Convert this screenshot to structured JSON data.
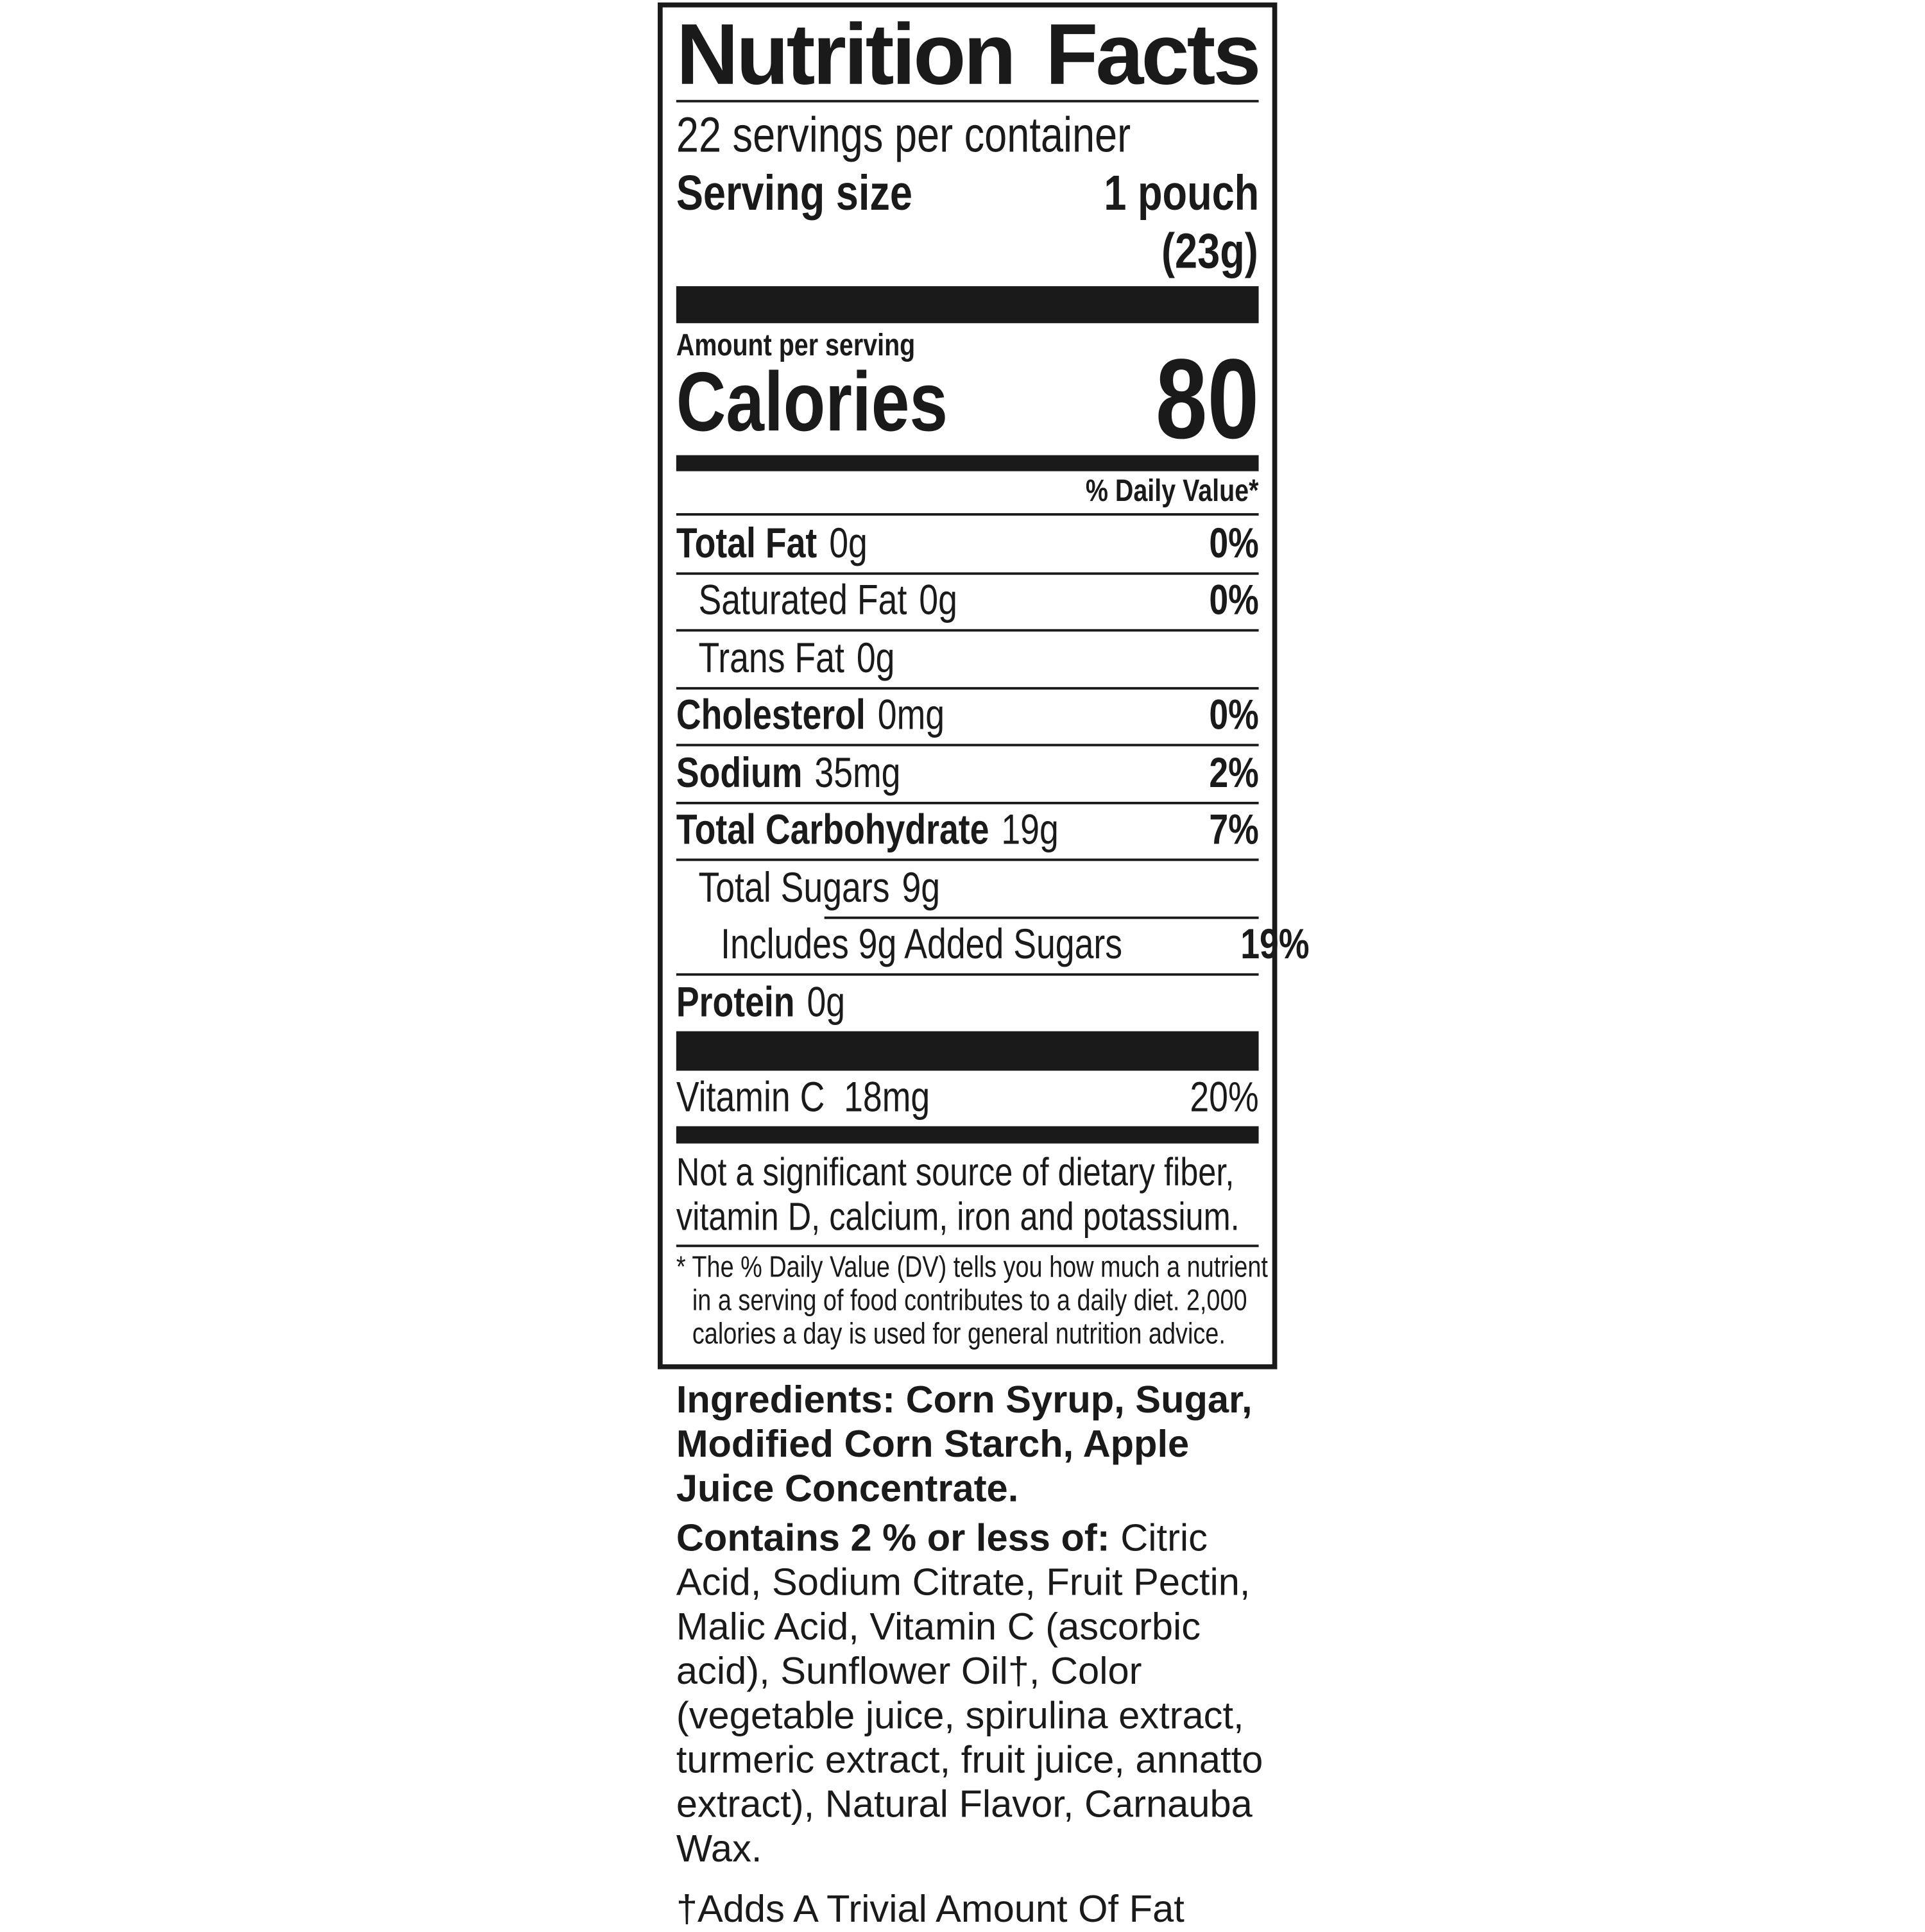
{
  "label": {
    "title": "Nutrition Facts",
    "servings_per_container": "22 servings per container",
    "serving_size_label": "Serving size",
    "serving_size_value": "1 pouch",
    "serving_size_weight": "(23g)",
    "amount_per_serving": "Amount per serving",
    "calories_label": "Calories",
    "calories_value": "80",
    "daily_value_header": "% Daily Value*",
    "nutrients": [
      {
        "name": "Total Fat",
        "amount": "0g",
        "dv": "0%"
      },
      {
        "name": "Saturated Fat",
        "amount": "0g",
        "dv": "0%"
      },
      {
        "name": "Trans Fat",
        "amount": "0g",
        "dv": ""
      },
      {
        "name": "Cholesterol",
        "amount": "0mg",
        "dv": "0%"
      },
      {
        "name": "Sodium",
        "amount": "35mg",
        "dv": "2%"
      },
      {
        "name": "Total Carbohydrate",
        "amount": "19g",
        "dv": "7%"
      },
      {
        "name": "Total Sugars",
        "amount": "9g",
        "dv": ""
      },
      {
        "name": "Includes 9g Added Sugars",
        "amount": "",
        "dv": "19%"
      },
      {
        "name": "Protein",
        "amount": "0g",
        "dv": ""
      }
    ],
    "vitamins": [
      {
        "name": "Vitamin C",
        "amount": "18mg",
        "dv": "20%"
      }
    ],
    "not_significant": [
      "Not a significant source of dietary fiber,",
      "vitamin D, calcium, iron and potassium."
    ],
    "footnote": [
      "* The % Daily Value (DV) tells you how much a nutrient",
      "in a serving of food contributes to a daily diet. 2,000",
      "calories a day is used for general nutrition advice."
    ]
  },
  "ingredients": {
    "main": "Ingredients: Corn Syrup, Sugar, Modified Corn Starch, Apple Juice Concentrate.",
    "contains_label": "Contains 2 % or less of:",
    "contains_text": " Citric Acid, Sodium Citrate, Fruit Pectin, Malic Acid, Vitamin C (ascorbic acid), Sunflower Oil†, Color (vegetable juice, spirulina extract, turmeric extract, fruit juice, annatto extract), Natural Flavor, Carnauba Wax.",
    "dagger_note": "†Adds A Trivial Amount Of Fat"
  }
}
